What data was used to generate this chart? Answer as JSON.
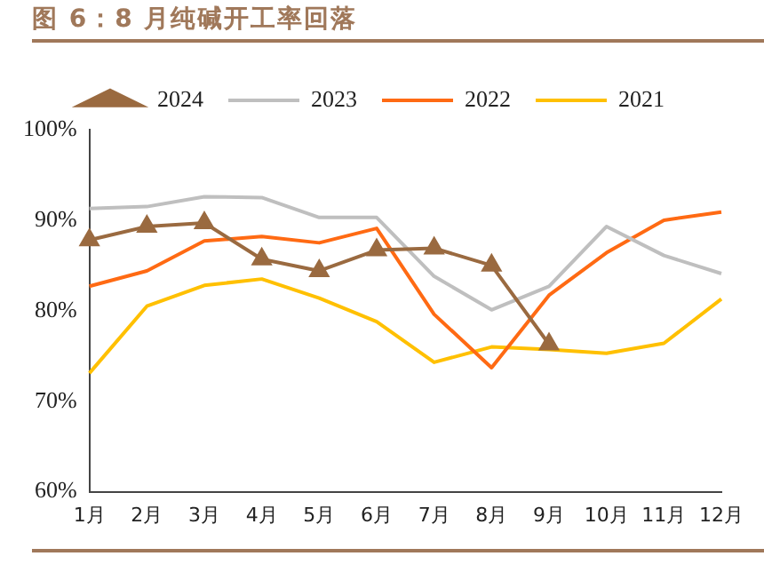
{
  "chart_data": {
    "type": "line",
    "title": "图 6：8 月纯碱开工率回落",
    "categories": [
      "1月",
      "2月",
      "3月",
      "4月",
      "5月",
      "6月",
      "7月",
      "8月",
      "9月",
      "10月",
      "11月",
      "12月"
    ],
    "series": [
      {
        "name": "2024",
        "color": "#9a6a40",
        "marker": "triangle",
        "values": [
          87.8,
          89.3,
          89.7,
          85.7,
          84.4,
          86.7,
          86.9,
          85.0,
          76.3,
          null,
          null,
          null
        ]
      },
      {
        "name": "2023",
        "color": "#bfbfbf",
        "marker": "none",
        "values": [
          91.3,
          91.5,
          92.6,
          92.5,
          90.3,
          90.3,
          83.8,
          80.1,
          82.7,
          89.3,
          86.1,
          84.1
        ]
      },
      {
        "name": "2022",
        "color": "#ff6a13",
        "marker": "none",
        "values": [
          82.7,
          84.4,
          87.7,
          88.2,
          87.5,
          89.1,
          79.6,
          73.7,
          81.7,
          86.4,
          90.0,
          90.9
        ]
      },
      {
        "name": "2021",
        "color": "#ffc000",
        "marker": "none",
        "values": [
          73.1,
          80.5,
          82.8,
          83.5,
          81.4,
          78.8,
          74.3,
          76.0,
          75.7,
          75.3,
          76.4,
          81.3
        ]
      }
    ],
    "ylim": [
      60,
      100
    ],
    "yticks": [
      {
        "value": 60,
        "label": "60%"
      },
      {
        "value": 70,
        "label": "70%"
      },
      {
        "value": 80,
        "label": "80%"
      },
      {
        "value": 90,
        "label": "90%"
      },
      {
        "value": 100,
        "label": "100%"
      }
    ],
    "grid": false,
    "legend": "top",
    "line_style": "solid"
  }
}
